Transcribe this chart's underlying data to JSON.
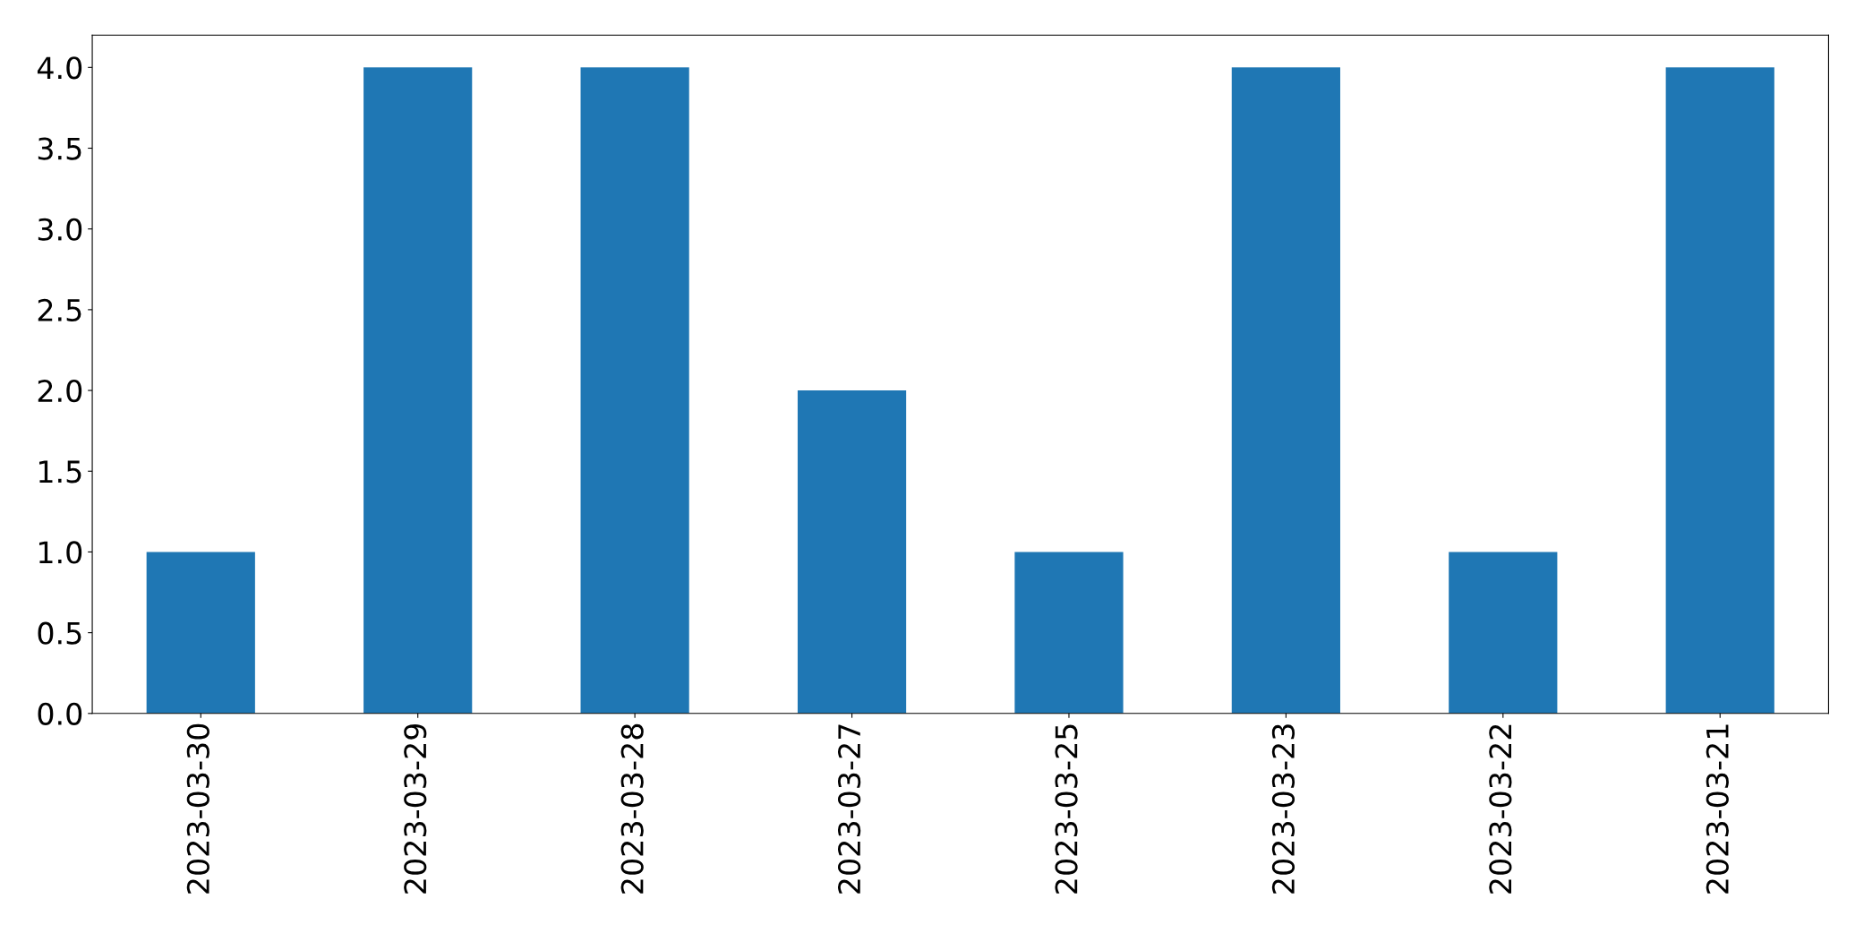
{
  "chart_data": {
    "type": "bar",
    "categories": [
      "2023-03-30",
      "2023-03-29",
      "2023-03-28",
      "2023-03-27",
      "2023-03-25",
      "2023-03-23",
      "2023-03-22",
      "2023-03-21"
    ],
    "values": [
      1,
      4,
      4,
      2,
      1,
      4,
      1,
      4
    ],
    "color": "#1f77b4",
    "ylim": [
      0,
      4.2
    ],
    "yticks": [
      {
        "value": 0,
        "label": "0.0"
      },
      0.5,
      {
        "value": 1,
        "label": "1.0"
      },
      1.5,
      {
        "value": 2,
        "label": "2.0"
      },
      2.5,
      {
        "value": 3,
        "label": "3.0"
      },
      3.5,
      {
        "value": 4,
        "label": "4.0"
      }
    ],
    "grid": false,
    "legend": false
  }
}
